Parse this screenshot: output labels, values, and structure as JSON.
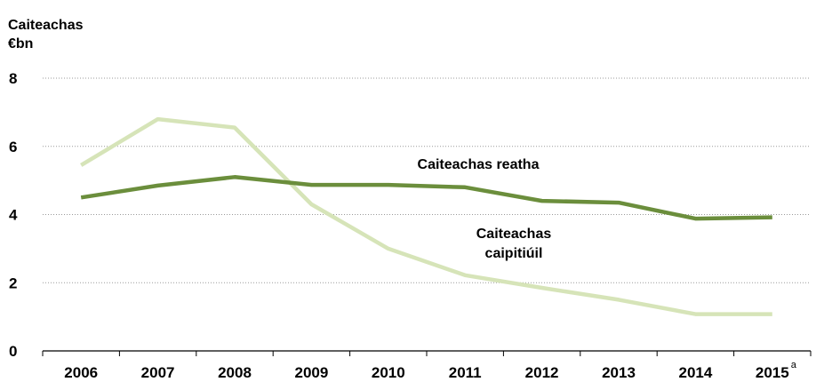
{
  "chart_data": {
    "type": "line",
    "title": "Caiteachas",
    "ylabel": "€bn",
    "x": [
      "2006",
      "2007",
      "2008",
      "2009",
      "2010",
      "2011",
      "2012",
      "2013",
      "2014",
      "2015"
    ],
    "x_footnote": {
      "category": "2015",
      "mark": "a"
    },
    "yticks": [
      "0",
      "2",
      "4",
      "6",
      "8"
    ],
    "ylim": [
      0,
      8
    ],
    "grid": "horizontal-dotted",
    "legend": "inline-labels",
    "series": [
      {
        "name": "Caiteachas reatha",
        "color": "#6b8e3c",
        "values": [
          4.5,
          4.85,
          5.1,
          4.87,
          4.87,
          4.8,
          4.4,
          4.35,
          3.88,
          3.92
        ]
      },
      {
        "name": "Caiteachas caipitiúil",
        "name_lines": [
          "Caiteachas",
          "caipitiúil"
        ],
        "color": "#d6e4b8",
        "values": [
          5.45,
          6.8,
          6.55,
          4.3,
          3.0,
          2.22,
          1.85,
          1.5,
          1.08,
          1.08
        ]
      }
    ]
  }
}
